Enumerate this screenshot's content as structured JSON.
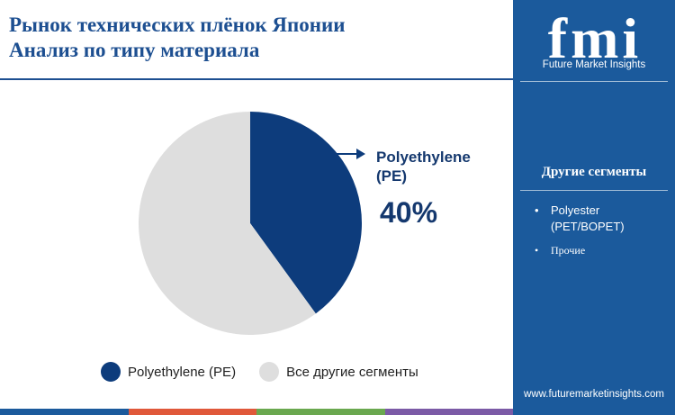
{
  "header": {
    "title_line1": "Рынок технических плёнок Японии",
    "title_line2": "Анализ по типу материала"
  },
  "chart_data": {
    "type": "pie",
    "slices": [
      {
        "label": "Polyethylene (PE)",
        "value": 40,
        "color": "#0d3c7c"
      },
      {
        "label": "Все другие сегменты",
        "value": 60,
        "color": "#dedede"
      }
    ],
    "callout": {
      "label": "Polyethylene (PE)",
      "value": "40%"
    },
    "legend": {
      "placement": "bottom"
    }
  },
  "sidebar": {
    "logo_text": "fmi",
    "brand": "Future Market Insights",
    "heading": "Другие сегменты",
    "items": [
      "Polyester (PET/BOPET)",
      "Прочие"
    ],
    "website": "www.futuremarketinsights.com",
    "background": "#1b5a9c"
  },
  "bottom_bar_colors": [
    "#1b5a9c",
    "#e0583a",
    "#6aa84f",
    "#7b5aa6"
  ]
}
